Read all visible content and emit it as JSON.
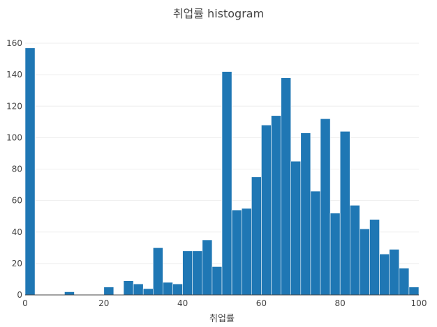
{
  "chart_data": {
    "type": "bar",
    "title": "취업률 histogram",
    "xlabel": "취업률",
    "ylabel": "",
    "xlim": [
      0,
      100
    ],
    "ylim": [
      0,
      160
    ],
    "bin_width": 2.5,
    "bin_start": 0,
    "values": [
      157,
      0,
      0,
      0,
      2,
      0,
      0,
      0,
      5,
      0,
      9,
      7,
      4,
      30,
      8,
      7,
      28,
      28,
      35,
      18,
      142,
      54,
      55,
      75,
      108,
      114,
      138,
      85,
      103,
      66,
      112,
      52,
      104,
      57,
      42,
      48,
      26,
      29,
      17,
      5
    ],
    "x_ticks": [
      "0",
      "20",
      "40",
      "60",
      "80",
      "100"
    ],
    "x_tick_values": [
      0,
      20,
      40,
      60,
      80,
      100
    ],
    "y_ticks": [
      "0",
      "20",
      "40",
      "60",
      "80",
      "100",
      "120",
      "140",
      "160"
    ],
    "y_tick_values": [
      0,
      20,
      40,
      60,
      80,
      100,
      120,
      140,
      160
    ],
    "grid": true,
    "legend": "none",
    "bar_color": "#1f77b4",
    "bar_edge_color": "#ffffff",
    "grid_color": "#eeeeee",
    "axis_color": "#444444"
  }
}
